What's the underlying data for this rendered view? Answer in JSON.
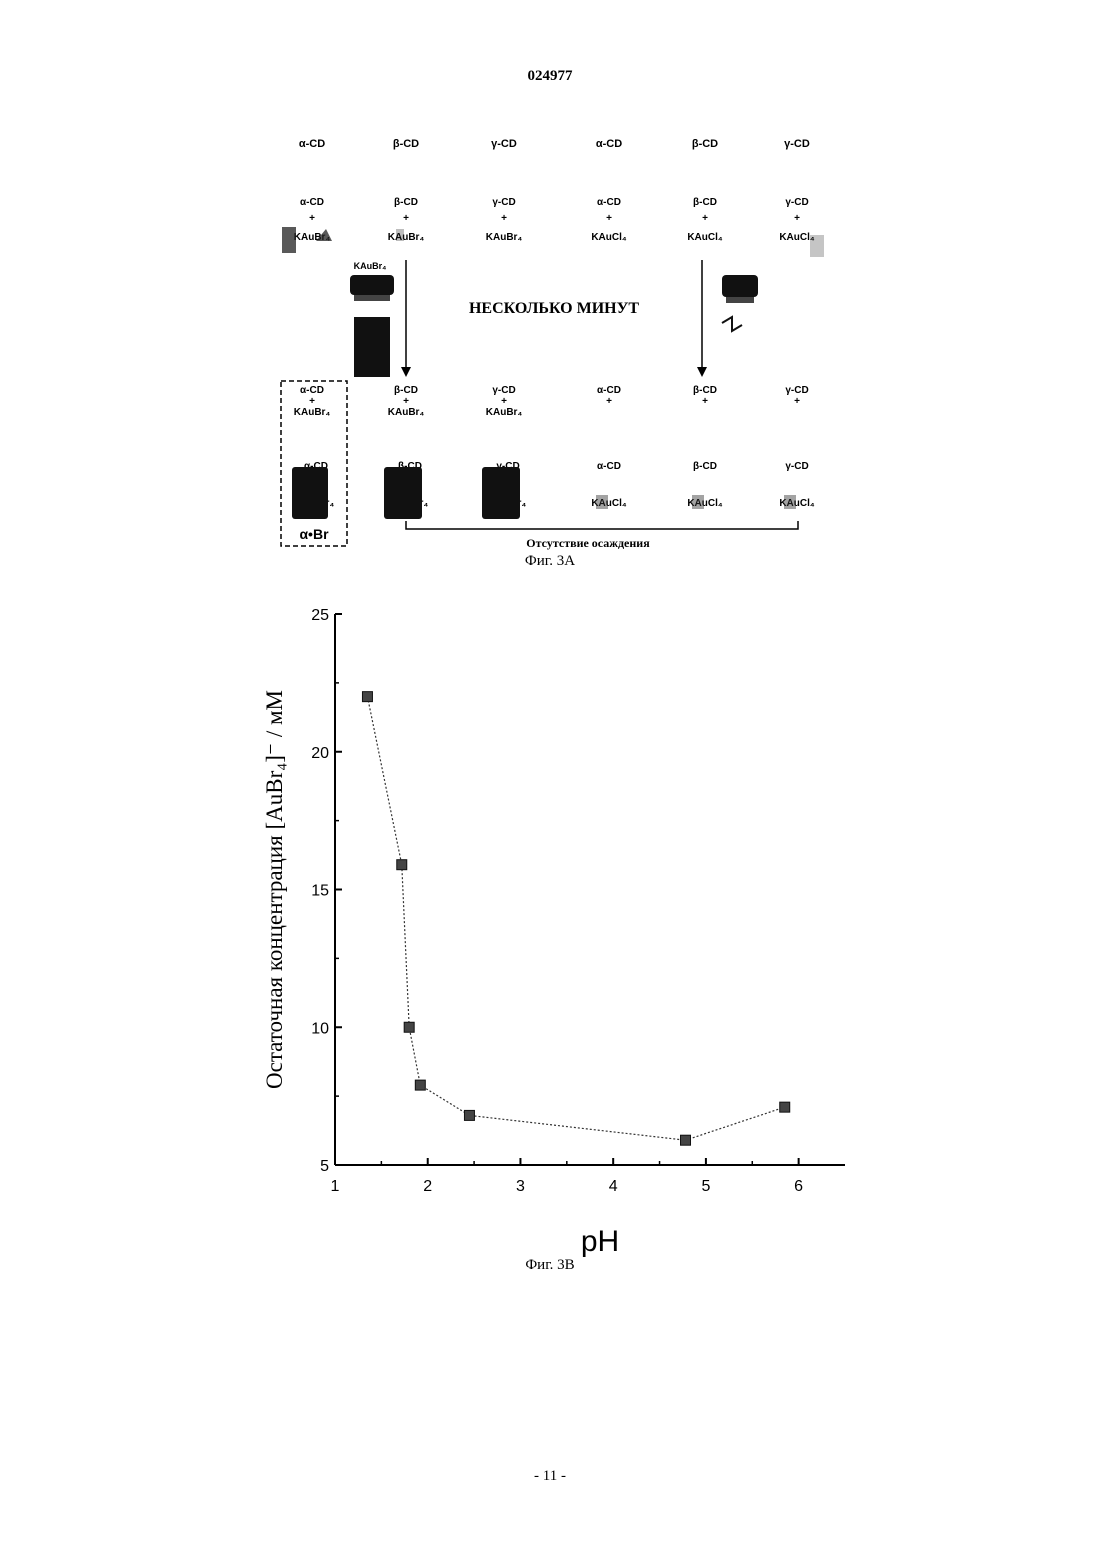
{
  "doc_number": "024977",
  "page_number": "- 11 -",
  "fig3a": {
    "caption": "Фиг. 3A",
    "center_label": "НЕСКОЛЬКО МИНУТ",
    "bracket_label": "Отсутствие осаждения",
    "vial_label_top_left": "KAuBr₄",
    "row1_labels": [
      "α-CD",
      "β-CD",
      "γ-CD",
      "α-CD",
      "β-CD",
      "γ-CD"
    ],
    "row2_cd_labels": [
      "α-CD",
      "β-CD",
      "γ-CD",
      "α-CD",
      "β-CD",
      "γ-CD"
    ],
    "row2_salt_labels": [
      "KAuBr₄",
      "KAuBr₄",
      "KAuBr₄",
      "KAuCl₄",
      "KAuCl₄",
      "KAuCl₄"
    ],
    "row3_cd_labels": [
      "α-CD",
      "β-CD",
      "γ-CD",
      "α-CD",
      "β-CD",
      "γ-CD"
    ],
    "row3_salt_labels": [
      "KAuBr₄",
      "KAuBr₄",
      "KAuBr₄",
      "",
      "",
      ""
    ],
    "plus_sign": "+",
    "precipitate_label": "α•Br"
  },
  "fig3b": {
    "caption": "Фиг. 3B"
  },
  "chart_data": {
    "type": "line",
    "title": "",
    "xlabel": "pH",
    "ylabel": "Остаточная концентрация [AuBr₄]⁻ / мМ",
    "x": [
      1.35,
      1.72,
      1.8,
      1.92,
      2.45,
      4.78,
      5.85
    ],
    "series": [
      {
        "values": [
          22.0,
          15.9,
          10.0,
          7.9,
          6.8,
          5.9,
          7.1
        ]
      }
    ],
    "xlim": [
      1,
      6.5
    ],
    "ylim": [
      5,
      25
    ],
    "xticks": [
      1,
      2,
      3,
      4,
      5,
      6
    ],
    "yticks": [
      5,
      10,
      15,
      20,
      25
    ],
    "grid": false,
    "marker": "square",
    "line_style": "dotted",
    "color": "#333333"
  }
}
